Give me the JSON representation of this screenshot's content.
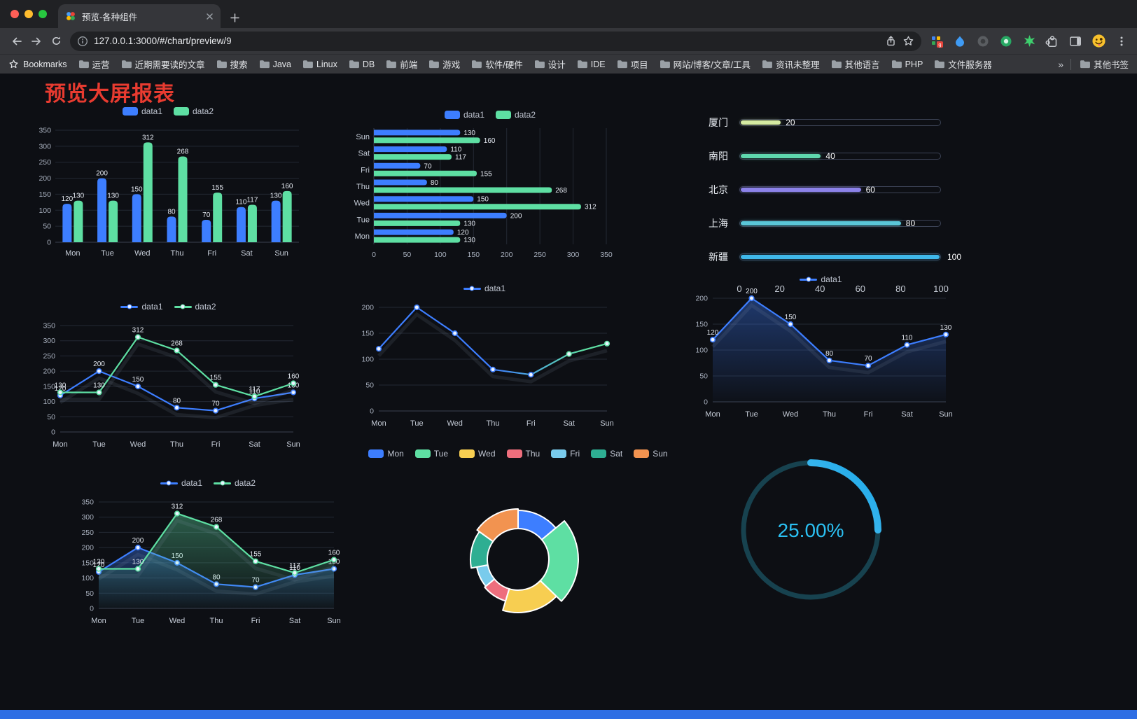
{
  "browser": {
    "tab": {
      "title": "预览-各种组件"
    },
    "address": {
      "url": "127.0.0.1:3000/#/chart/preview/9"
    },
    "bookmarks_bar": {
      "label": "Bookmarks",
      "folders": [
        "运营",
        "近期需要读的文章",
        "搜索",
        "Java",
        "Linux",
        "DB",
        "前端",
        "游戏",
        "软件/硬件",
        "设计",
        "IDE",
        "项目",
        "网站/博客/文章/工具",
        "资讯未整理",
        "其他语言",
        "PHP",
        "文件服务器"
      ],
      "overflow": "»",
      "other": "其他书签"
    }
  },
  "page": {
    "title": "预览大屏报表",
    "title_color": "#e83b30",
    "background": "#0d0f14",
    "footer_color": "#2e6ee4"
  },
  "chart_data": [
    {
      "id": "grouped-bar",
      "type": "bar",
      "categories": [
        "Mon",
        "Tue",
        "Wed",
        "Thu",
        "Fri",
        "Sat",
        "Sun"
      ],
      "series": [
        {
          "name": "data1",
          "color": "#3D7EFF",
          "values": [
            120,
            200,
            150,
            80,
            70,
            110,
            130
          ]
        },
        {
          "name": "data2",
          "color": "#5EDFA3",
          "values": [
            130,
            130,
            312,
            268,
            155,
            117,
            160
          ]
        }
      ],
      "ylim": [
        0,
        350
      ],
      "ytick_step": 50,
      "grid": true,
      "legend_position": "top"
    },
    {
      "id": "grouped-bar-horizontal",
      "type": "bar-horizontal",
      "categories": [
        "Mon",
        "Tue",
        "Wed",
        "Thu",
        "Fri",
        "Sat",
        "Sun"
      ],
      "series": [
        {
          "name": "data1",
          "color": "#3D7EFF",
          "values": [
            120,
            200,
            150,
            80,
            70,
            110,
            130
          ]
        },
        {
          "name": "data2",
          "color": "#5EDFA3",
          "values": [
            130,
            130,
            312,
            268,
            155,
            117,
            160
          ]
        }
      ],
      "xlim": [
        0,
        350
      ],
      "xtick_step": 50,
      "grid": true,
      "legend_position": "top"
    },
    {
      "id": "city-progress",
      "type": "progress",
      "items": [
        {
          "label": "厦门",
          "value": 20,
          "color": "#D5EBA2"
        },
        {
          "label": "南阳",
          "value": 40,
          "color": "#5FD8AE"
        },
        {
          "label": "北京",
          "value": 60,
          "color": "#8C82E9"
        },
        {
          "label": "上海",
          "value": 80,
          "color": "#5AC6D8"
        },
        {
          "label": "新疆",
          "value": 100,
          "color": "#3FB8EA"
        }
      ],
      "max": 100,
      "axis_ticks": [
        0,
        20,
        40,
        60,
        80,
        100
      ]
    },
    {
      "id": "two-series-line",
      "type": "line",
      "categories": [
        "Mon",
        "Tue",
        "Wed",
        "Thu",
        "Fri",
        "Sat",
        "Sun"
      ],
      "series": [
        {
          "name": "data1",
          "color": "#3D7EFF",
          "values": [
            120,
            200,
            150,
            80,
            70,
            110,
            130
          ]
        },
        {
          "name": "data2",
          "color": "#5EDFA3",
          "values": [
            130,
            130,
            312,
            268,
            155,
            117,
            160
          ]
        }
      ],
      "ylim": [
        0,
        350
      ],
      "ytick_step": 50,
      "value_labels": true,
      "grid": true
    },
    {
      "id": "gradient-line",
      "type": "line",
      "categories": [
        "Mon",
        "Tue",
        "Wed",
        "Thu",
        "Fri",
        "Sat",
        "Sun"
      ],
      "series": [
        {
          "name": "data1",
          "color": "#3D7EFF",
          "color_end": "#5EDFA3",
          "values": [
            120,
            200,
            150,
            80,
            70,
            110,
            130
          ]
        }
      ],
      "ylim": [
        0,
        200
      ],
      "ytick_step": 50,
      "value_labels": false,
      "grid": true
    },
    {
      "id": "area-line",
      "type": "line",
      "categories": [
        "Mon",
        "Tue",
        "Wed",
        "Thu",
        "Fri",
        "Sat",
        "Sun"
      ],
      "series": [
        {
          "name": "data1",
          "color": "#3D7EFF",
          "area": true,
          "values": [
            120,
            200,
            150,
            80,
            70,
            110,
            130
          ]
        }
      ],
      "ylim": [
        0,
        200
      ],
      "ytick_step": 50,
      "value_labels": true,
      "grid": true
    },
    {
      "id": "two-series-area-line",
      "type": "line",
      "categories": [
        "Mon",
        "Tue",
        "Wed",
        "Thu",
        "Fri",
        "Sat",
        "Sun"
      ],
      "series": [
        {
          "name": "data1",
          "color": "#3D7EFF",
          "area": true,
          "values": [
            120,
            200,
            150,
            80,
            70,
            110,
            130
          ]
        },
        {
          "name": "data2",
          "color": "#5EDFA3",
          "area": true,
          "values": [
            130,
            130,
            312,
            268,
            155,
            117,
            160
          ]
        }
      ],
      "ylim": [
        0,
        350
      ],
      "ytick_step": 50,
      "value_labels": true,
      "grid": true
    },
    {
      "id": "rose-pie",
      "type": "pie",
      "rose": true,
      "items": [
        {
          "name": "Mon",
          "value": 120,
          "color": "#3D7EFF"
        },
        {
          "name": "Tue",
          "value": 200,
          "color": "#5EDFA3"
        },
        {
          "name": "Wed",
          "value": 150,
          "color": "#F7CE51"
        },
        {
          "name": "Thu",
          "value": 80,
          "color": "#EE6E7D"
        },
        {
          "name": "Fri",
          "value": 70,
          "color": "#79CBEC"
        },
        {
          "name": "Sat",
          "value": 110,
          "color": "#2EAE92"
        },
        {
          "name": "Sun",
          "value": 130,
          "color": "#F29350"
        }
      ]
    },
    {
      "id": "percent-gauge",
      "type": "gauge",
      "value": 25,
      "max": 100,
      "display": "25.00%",
      "color": "#2BC0F2",
      "track_color": "#17424F",
      "arc_colors": [
        "#8FD9F6",
        "#18A7E9"
      ]
    }
  ]
}
